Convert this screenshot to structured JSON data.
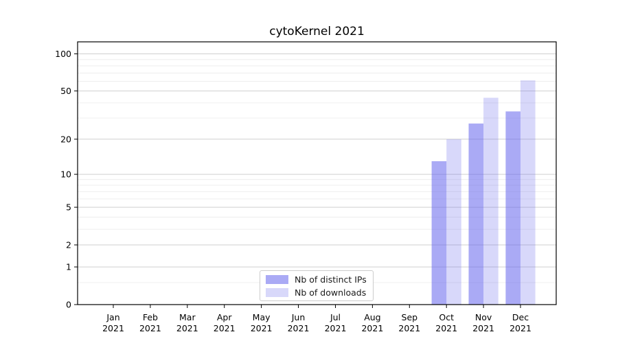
{
  "title": "cytoKernel 2021",
  "chart_data": {
    "type": "bar",
    "title": "cytoKernel 2021",
    "categories": [
      "Jan 2021",
      "Feb 2021",
      "Mar 2021",
      "Apr 2021",
      "May 2021",
      "Jun 2021",
      "Jul 2021",
      "Aug 2021",
      "Sep 2021",
      "Oct 2021",
      "Nov 2021",
      "Dec 2021"
    ],
    "series": [
      {
        "name": "Nb of distinct IPs",
        "color": "rgba(101,101,237,0.55)",
        "color_hex": "#aaaaf5",
        "values": [
          0,
          0,
          0,
          0,
          0,
          0,
          0,
          0,
          0,
          13,
          27,
          34
        ]
      },
      {
        "name": "Nb of downloads",
        "color": "rgba(101,101,237,0.25)",
        "color_hex": "#d9d9fa",
        "values": [
          0,
          0,
          0,
          0,
          0,
          0,
          0,
          0,
          0,
          20,
          44,
          61
        ]
      }
    ],
    "xlabel": "",
    "ylabel": "",
    "y_scale": "log1p",
    "y_ticks": [
      0,
      1,
      2,
      5,
      10,
      20,
      50,
      100
    ],
    "y_minor_ticks": [
      0.5,
      3,
      4,
      6,
      7,
      8,
      9,
      30,
      40,
      60,
      70,
      80,
      90
    ],
    "ylim": [
      0,
      125
    ],
    "grid": "on",
    "legend_position": "lower center",
    "colors": {
      "axis": "#000000",
      "tick_label": "#000000",
      "grid_major": "#cfcfcf",
      "grid_minor": "#ececec",
      "legend_border": "#cccccc"
    }
  }
}
